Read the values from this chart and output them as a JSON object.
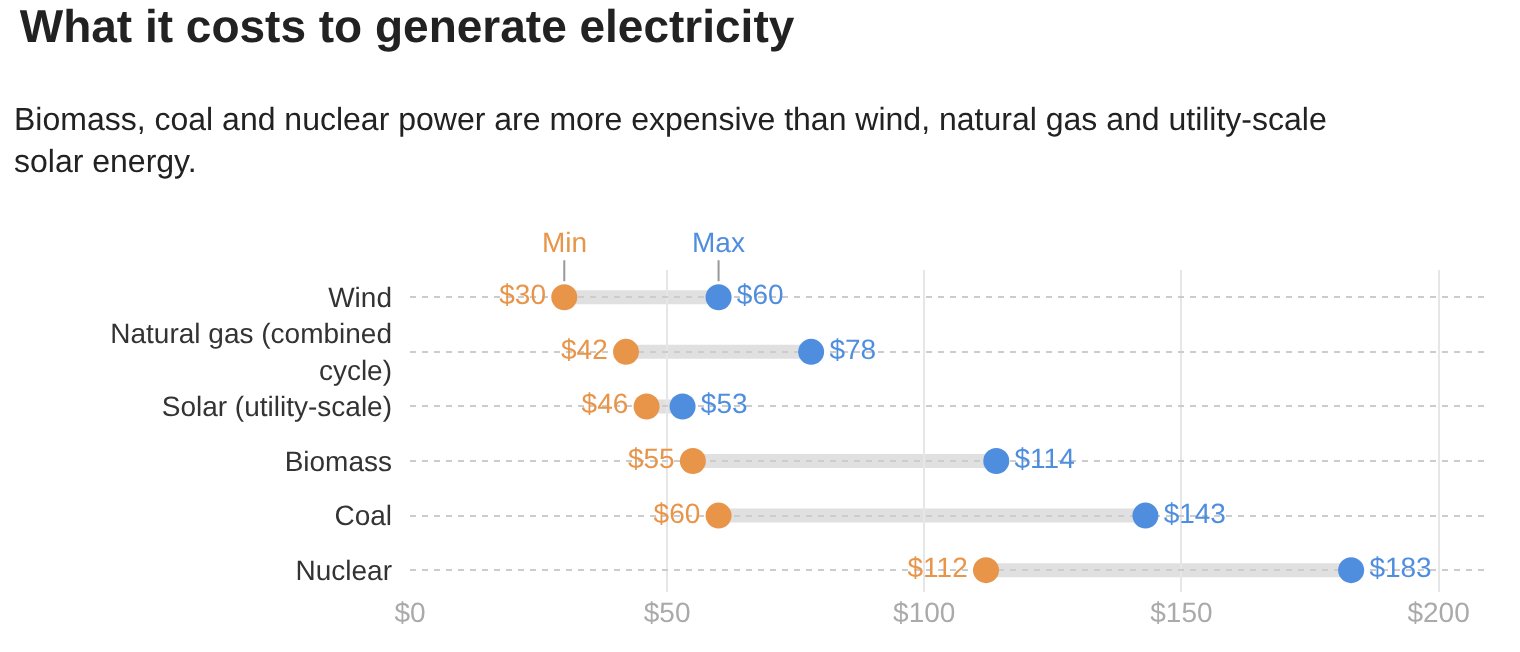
{
  "chart_data": {
    "type": "scatter",
    "orientation": "horizontal",
    "title": "What it costs to generate electricity",
    "subtitle": "Biomass, coal and nuclear power are more expensive than wind, natural gas and utility-scale solar energy.",
    "categories": [
      "Wind",
      "Natural gas (combined cycle)",
      "Solar (utility-scale)",
      "Biomass",
      "Coal",
      "Nuclear"
    ],
    "series": [
      {
        "name": "Min",
        "color": "#e8954a",
        "values": [
          30,
          42,
          46,
          55,
          60,
          112
        ],
        "value_labels": [
          "$30",
          "$42",
          "$46",
          "$55",
          "$60",
          "$112"
        ]
      },
      {
        "name": "Max",
        "color": "#4f8ede",
        "values": [
          60,
          78,
          53,
          114,
          143,
          183
        ],
        "value_labels": [
          "$60",
          "$78",
          "$53",
          "$114",
          "$143",
          "$183"
        ]
      }
    ],
    "xlim": [
      0,
      210
    ],
    "xticks": [
      {
        "value": 0,
        "label": "$0"
      },
      {
        "value": 50,
        "label": "$50"
      },
      {
        "value": 100,
        "label": "$100"
      },
      {
        "value": 150,
        "label": "$150"
      },
      {
        "value": 200,
        "label": "$200"
      }
    ],
    "grid": true,
    "legend": false,
    "marker": "circle"
  }
}
